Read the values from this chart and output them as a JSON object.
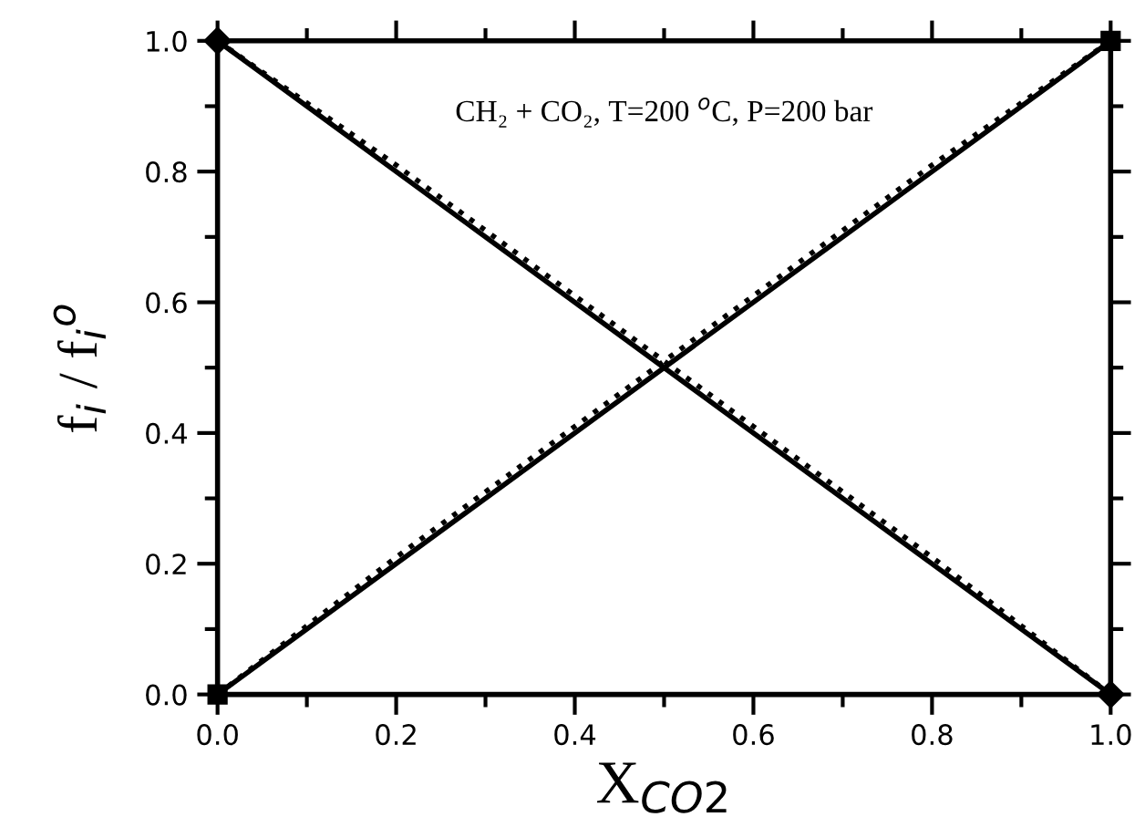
{
  "chart_data": {
    "type": "line",
    "xlabel": "X$_{CO2}$",
    "ylabel": "f$_{i}$ / f$_{i}$$^{o}$",
    "annotations": [
      "CH₂ + CO₂, T=200 $^{o}$C, P=200 bar"
    ],
    "xlim": [
      0,
      1
    ],
    "ylim": [
      0,
      1
    ],
    "xticks": [
      {
        "value": 0,
        "label": "0.0"
      },
      0.2,
      0.4,
      0.6,
      0.8,
      {
        "value": 1,
        "label": "1.0"
      }
    ],
    "yticks": [
      {
        "value": 0,
        "label": "0.0"
      },
      0.2,
      0.4,
      0.6,
      0.8,
      {
        "value": 1,
        "label": "1.0"
      }
    ],
    "grid": false,
    "series": [
      {
        "color": "#000000",
        "line_style": "solid",
        "marker": "square",
        "x": [
          0,
          1
        ],
        "values": [
          0,
          1
        ]
      },
      {
        "color": "#000000",
        "line_style": "solid",
        "marker": "diamond",
        "x": [
          0,
          1
        ],
        "values": [
          1,
          0
        ]
      },
      {
        "color": "#000000",
        "line_style": "dotted",
        "marker": "none",
        "x": [
          0,
          0.1,
          0.2,
          0.3,
          0.4,
          0.5,
          0.6,
          0.7,
          0.8,
          0.9,
          1
        ],
        "values": [
          0,
          0.105,
          0.21,
          0.31,
          0.41,
          0.51,
          0.61,
          0.71,
          0.81,
          0.905,
          1
        ]
      },
      {
        "color": "#000000",
        "line_style": "dotted",
        "marker": "none",
        "x": [
          0,
          0.1,
          0.2,
          0.3,
          0.4,
          0.5,
          0.6,
          0.7,
          0.8,
          0.9,
          1
        ],
        "values": [
          1,
          0.905,
          0.81,
          0.71,
          0.61,
          0.51,
          0.41,
          0.31,
          0.21,
          0.105,
          0
        ]
      }
    ]
  }
}
